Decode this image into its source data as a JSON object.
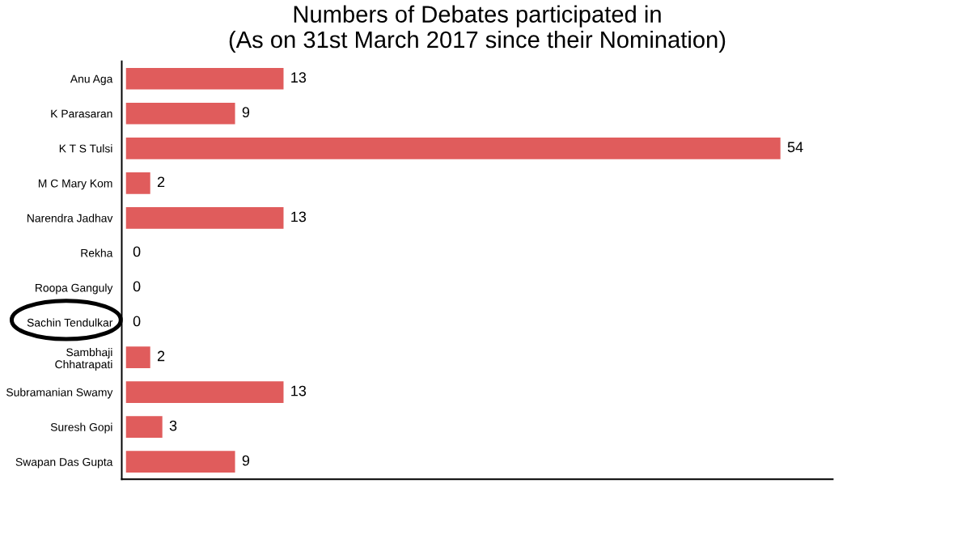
{
  "chart_data": {
    "type": "bar",
    "orientation": "horizontal",
    "title": "Numbers of Debates participated in\n(As on 31st March 2017 since their Nomination)",
    "categories": [
      "Anu Aga",
      "K Parasaran",
      "K T S Tulsi",
      "M C Mary Kom",
      "Narendra Jadhav",
      "Rekha",
      "Roopa Ganguly",
      "Sachin Tendulkar",
      "Sambhaji\nChhatrapati",
      "Subramanian Swamy",
      "Suresh Gopi",
      "Swapan Das Gupta"
    ],
    "values": [
      13,
      9,
      54,
      2,
      13,
      0,
      0,
      0,
      2,
      13,
      3,
      9
    ],
    "color": "#e05c5c",
    "data_labels": true,
    "grid": false,
    "legend": false
  }
}
